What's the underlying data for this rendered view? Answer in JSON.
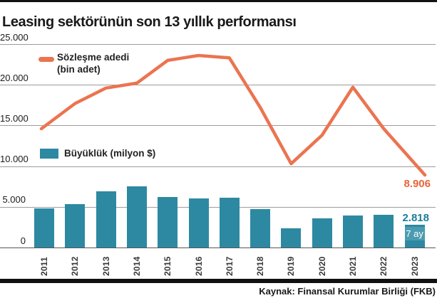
{
  "header": {
    "title": "Leasing sektörünün son 13 yıllık performansı"
  },
  "legend": {
    "line": {
      "label": "Sözleşme adedi",
      "sublabel": "(bin adet)",
      "color": "#EB7450"
    },
    "bar": {
      "label": "Büyüklük (milyon $)",
      "color": "#2D89A2"
    }
  },
  "annotations": {
    "line_last_value": "8.906",
    "bar_last_value": "2.818",
    "bar_last_note": "7 ay",
    "line_label_color": "#E8653C",
    "bar_label_color": "#1B7E9B",
    "note_box_color": "#4C9CB1"
  },
  "footer": {
    "source": "Kaynak: Finansal Kurumlar Birliği (FKB)"
  },
  "chart_data": {
    "type": "bar+line combo",
    "title": "Leasing sektörünün son 13 yıllık performansı",
    "categories": [
      "2011",
      "2012",
      "2013",
      "2014",
      "2015",
      "2016",
      "2017",
      "2018",
      "2019",
      "2020",
      "2021",
      "2022",
      "2023"
    ],
    "series": [
      {
        "name": "Sözleşme adedi (bin adet)",
        "type": "line",
        "color": "#EB7450",
        "values": [
          14600,
          17700,
          19600,
          20200,
          23000,
          23600,
          23300,
          17200,
          10300,
          13800,
          19700,
          14600,
          8906
        ]
      },
      {
        "name": "Büyüklük (milyon $)",
        "type": "bar",
        "color": "#2D89A2",
        "values": [
          4800,
          5300,
          6900,
          7500,
          6200,
          6000,
          6100,
          4700,
          2400,
          3600,
          3900,
          4000,
          2818
        ]
      }
    ],
    "ylim": [
      0,
      25000
    ],
    "yticks": {
      "values": [
        0,
        5000,
        10000,
        15000,
        20000,
        25000
      ],
      "labels": [
        "0",
        "5.000",
        "10.000",
        "15.000",
        "20.000",
        "25.000"
      ]
    },
    "grid": true,
    "legend_position": "inside-left",
    "notes": "2023 values cover 7 months (7 ay); last line value labeled 8.906, last bar value labeled 2.818"
  }
}
